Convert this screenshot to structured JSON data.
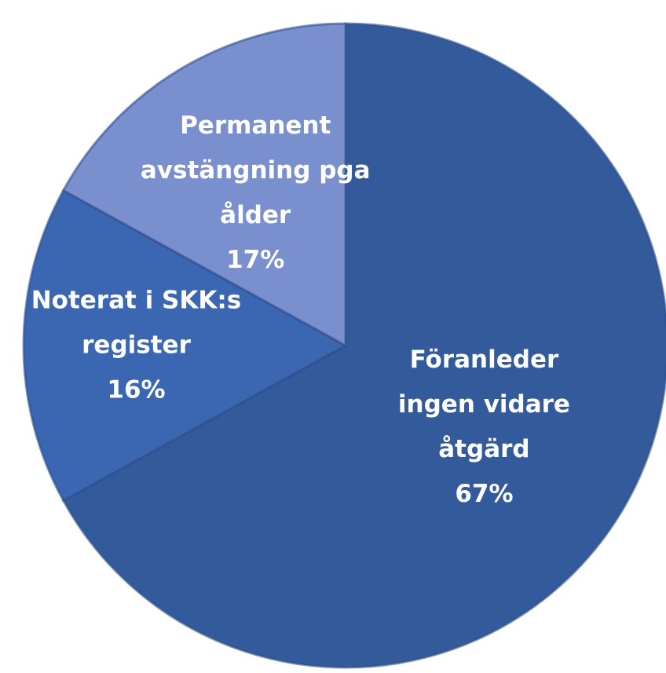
{
  "chart_data": {
    "type": "pie",
    "categories": [
      "Föranleder ingen vidare åtgärd",
      "Noterat i SKK:s register",
      "Permanent avstängning pga ålder"
    ],
    "values": [
      67,
      16,
      17
    ],
    "value_labels": [
      "67%",
      "16%",
      "17%"
    ],
    "colors": [
      "#335a9a",
      "#3b66b2",
      "#7a8fcd"
    ]
  }
}
